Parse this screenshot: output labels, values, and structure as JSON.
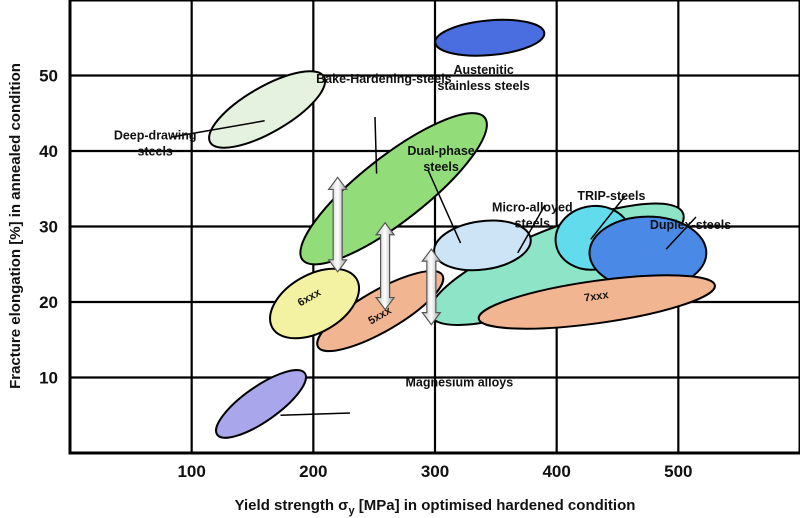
{
  "chart_data": {
    "type": "scatter",
    "title": "",
    "xlabel": "Yield strength σy [MPa] in optimised hardened condition",
    "xlabel_parts": {
      "main": "Yield strength σ",
      "sub": "y",
      "rest": " [MPa] in optimised hardened condition"
    },
    "ylabel": "Fracture elongation [%] in annealed condition",
    "xlim": [
      0,
      600
    ],
    "ylim": [
      0,
      60
    ],
    "xticks": [
      100,
      200,
      300,
      400,
      500
    ],
    "yticks": [
      10,
      20,
      30,
      40,
      50
    ],
    "grid": true,
    "regions": [
      {
        "name": "Austenitic stainless steels",
        "lines": [
          "Austenitic",
          "stainless steels"
        ],
        "cx": 345,
        "cy": 55,
        "rx": 45,
        "ry": 2.3,
        "angle": -5,
        "fill": "#4a6ee0",
        "label_at": [
          340,
          50.2
        ]
      },
      {
        "name": "Deep-drawing steels",
        "lines": [
          "Deep-drawing",
          "steels"
        ],
        "cx": 162,
        "cy": 45.5,
        "rx": 54,
        "ry": 3.0,
        "angle": -30,
        "fill": "#e6f2e0",
        "label_at": [
          70,
          41.5
        ]
      },
      {
        "name": "Bake-Hardening-steels",
        "lines": [
          "Bake-Hardening-steels"
        ],
        "cx": 266,
        "cy": 35,
        "rx": 95,
        "ry": 4.3,
        "angle": -38,
        "fill": "#92dc7a",
        "label_at": [
          258,
          49
        ]
      },
      {
        "name": "Micro-alloyed steels",
        "lines": [
          "Micro-alloyed",
          "steels"
        ],
        "cx": 400,
        "cy": 25,
        "rx": 112,
        "ry": 4.7,
        "angle": -22,
        "fill": "#8ee4c6",
        "label_at": [
          380,
          32
        ]
      },
      {
        "name": "Dual-phase steels",
        "lines": [
          "Dual-phase",
          "steels"
        ],
        "cx": 339,
        "cy": 27.5,
        "rx": 40,
        "ry": 3.2,
        "angle": -8,
        "fill": "#cce4f6",
        "label_at": [
          305,
          39.5
        ]
      },
      {
        "name": "TRIP-steels",
        "lines": [
          "TRIP-steels"
        ],
        "cx": 430,
        "cy": 28.5,
        "rx": 31,
        "ry": 4.2,
        "angle": -10,
        "fill": "#62dcec",
        "label_at": [
          445,
          33.5
        ]
      },
      {
        "name": "Duplex-steels",
        "lines": [
          "Duplex-steels"
        ],
        "cx": 475,
        "cy": 26.5,
        "rx": 48,
        "ry": 4.8,
        "angle": 0,
        "fill": "#4a8ae6",
        "label_at": [
          510,
          29.7
        ]
      },
      {
        "name": "7xxx",
        "lines": [
          "7xxx"
        ],
        "cx": 433,
        "cy": 20,
        "rx": 98,
        "ry": 2.8,
        "angle": -8,
        "fill": "#f2b592",
        "label_at": [
          433,
          20.3
        ]
      },
      {
        "name": "5xxx",
        "lines": [
          "5xxx"
        ],
        "cx": 255,
        "cy": 18.8,
        "rx": 59,
        "ry": 2.7,
        "angle": -30,
        "fill": "#f2b592",
        "label_at": [
          256,
          17.8
        ]
      },
      {
        "name": "6xxx",
        "lines": [
          "6xxx"
        ],
        "cx": 201,
        "cy": 19.8,
        "rx": 40,
        "ry": 3.8,
        "angle": -30,
        "fill": "#f2f2a2",
        "label_at": [
          198,
          20.2
        ]
      },
      {
        "name": "Magnesium alloys",
        "lines": [
          "Magnesium alloys"
        ],
        "cx": 157,
        "cy": 6.5,
        "rx": 44,
        "ry": 2.3,
        "angle": -35,
        "fill": "#aaa6ec",
        "label_at": [
          320,
          8.8
        ]
      }
    ],
    "arrows": [
      {
        "x": 220,
        "y_low": 24,
        "y_high": 36.5
      },
      {
        "x": 259,
        "y_low": 19,
        "y_high": 30.5
      },
      {
        "x": 297,
        "y_low": 17,
        "y_high": 27
      }
    ]
  }
}
